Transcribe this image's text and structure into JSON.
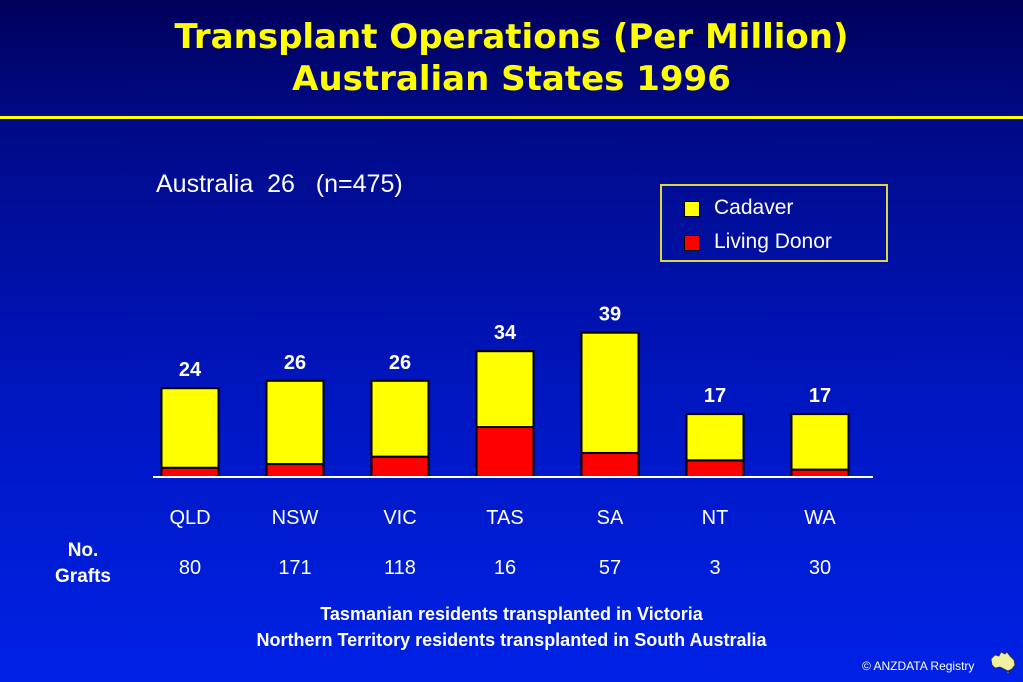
{
  "title_line1": "Transplant Operations (Per Million)",
  "title_line2": "Australian States  1996",
  "subtitle": "Australia  26   (n=475)",
  "legend": [
    {
      "label": "Cadaver",
      "color": "#ffff00"
    },
    {
      "label": "Living Donor",
      "color": "#ff0000"
    }
  ],
  "chart_data": {
    "type": "bar",
    "stacked": true,
    "categories": [
      "QLD",
      "NSW",
      "VIC",
      "TAS",
      "SA",
      "NT",
      "WA"
    ],
    "series": [
      {
        "name": "Living Donor",
        "color": "#ff0000",
        "values": [
          2.5,
          3.5,
          5.5,
          13.5,
          6.5,
          4.5,
          2.0
        ]
      },
      {
        "name": "Cadaver",
        "color": "#ffff00",
        "values": [
          21.5,
          22.5,
          20.5,
          20.5,
          32.5,
          12.5,
          15.0
        ]
      }
    ],
    "totals": [
      "24",
      "26",
      "26",
      "34",
      "39",
      "17",
      "17"
    ],
    "ylim": [
      0,
      40
    ],
    "grid": false,
    "legend_position": "top-right"
  },
  "grafts": {
    "label_line1": "No.",
    "label_line2": "Grafts",
    "values": [
      "80",
      "171",
      "118",
      "16",
      "57",
      "3",
      "30"
    ]
  },
  "footnote_line1": "Tasmanian residents transplanted in Victoria",
  "footnote_line2": "Northern Territory residents transplanted in South Australia",
  "credit": "© ANZDATA Registry"
}
